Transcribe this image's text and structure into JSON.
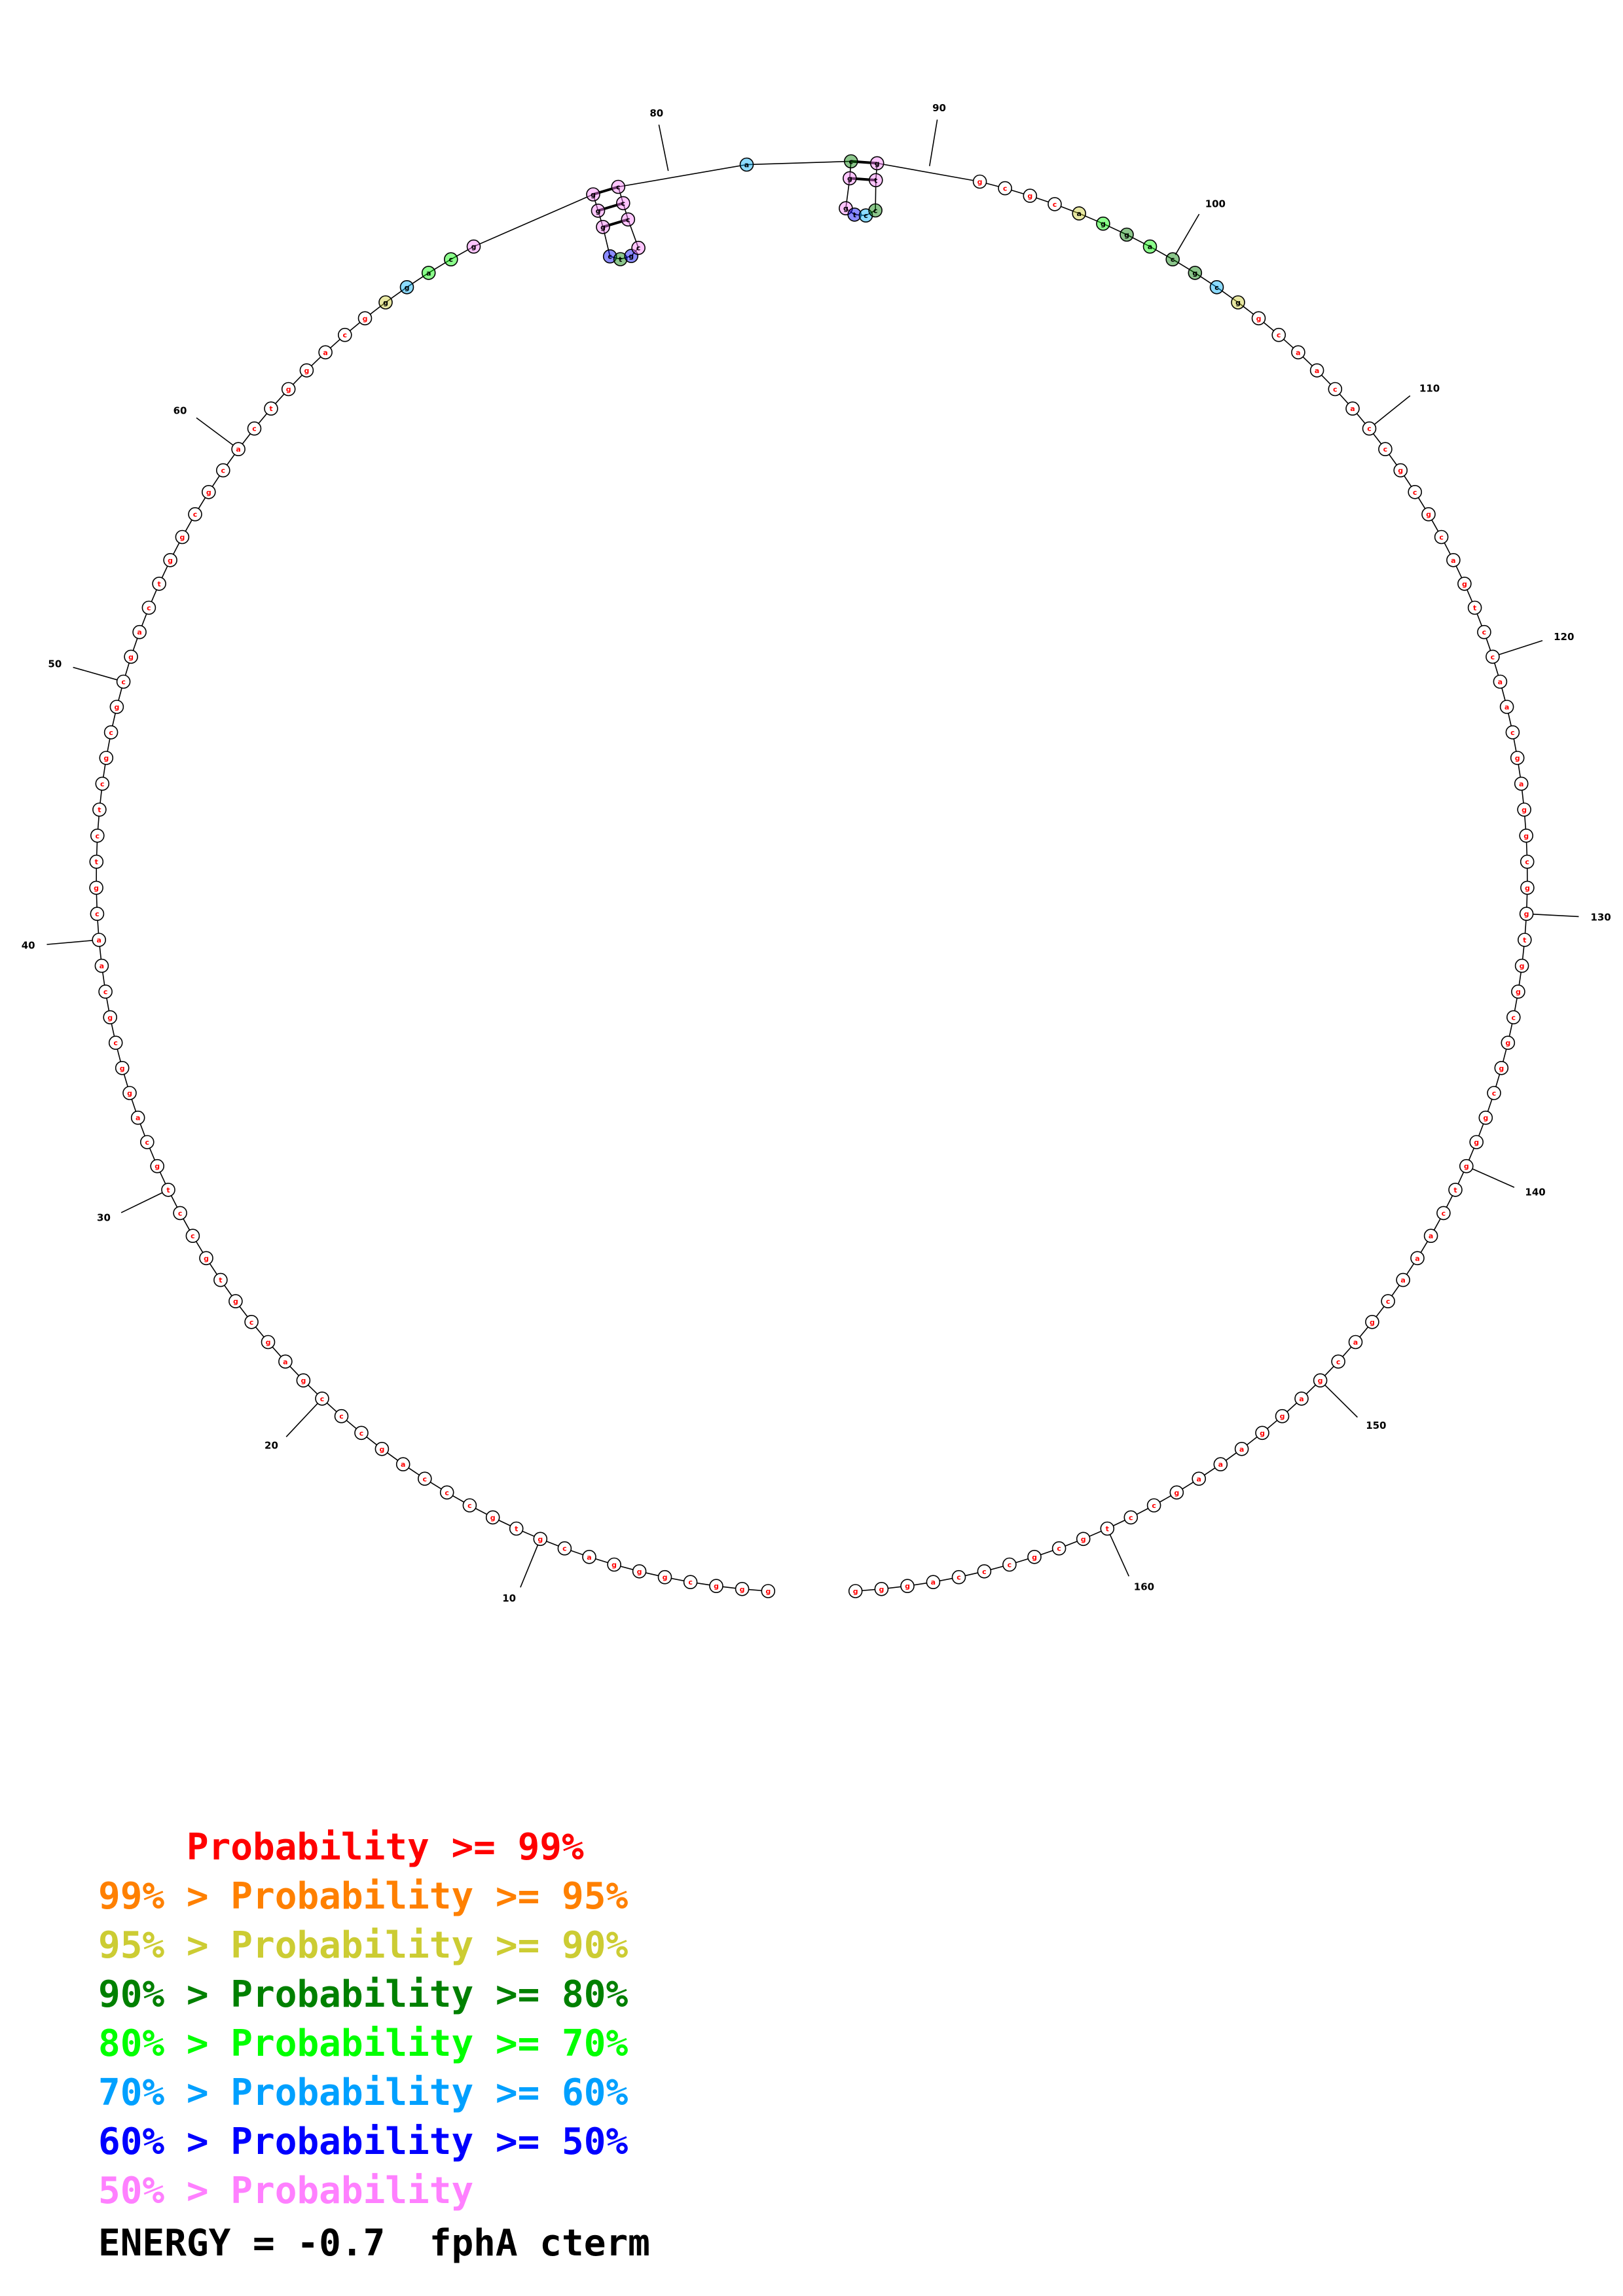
{
  "diagram": {
    "sequence": "gggcgggacgtgcccagcccgagcgtgcctgcaggcgcaacgtctcgcgcgactggcgcactggacgggacggggctgccccacggtcctggcgcaggacgcggcaacaccgcgcagtccaacgaggcggtggcggcgggtcaaacgacgaggaaagcctgcgcccagggcggctcttc",
    "length": 170,
    "hairpins": [
      {
        "stem": [
          [
            73,
            82
          ],
          [
            74,
            81
          ],
          [
            75,
            80
          ]
        ],
        "loop": [
          76,
          77,
          78,
          79
        ]
      },
      {
        "stem": [
          [
            84,
            91
          ],
          [
            85,
            90
          ]
        ],
        "loop": [
          86,
          87,
          88,
          89
        ]
      }
    ],
    "position_labels": [
      "10",
      "20",
      "30",
      "40",
      "50",
      "60",
      "80",
      "90",
      "100",
      "110",
      "120",
      "130",
      "140",
      "150",
      "160"
    ],
    "colored_bases": [
      {
        "index": 68,
        "color": "#cccc33"
      },
      {
        "index": 69,
        "color": "#00b0ff"
      },
      {
        "index": 70,
        "color": "#00ff00"
      },
      {
        "index": 71,
        "color": "#00ff00"
      },
      {
        "index": 72,
        "color": "#ff80ff"
      },
      {
        "index": 73,
        "color": "#ff80ff"
      },
      {
        "index": 74,
        "color": "#ff80ff"
      },
      {
        "index": 75,
        "color": "#ff80ff"
      },
      {
        "index": 76,
        "color": "#0000ff"
      },
      {
        "index": 77,
        "color": "#008000"
      },
      {
        "index": 78,
        "color": "#0000ff"
      },
      {
        "index": 79,
        "color": "#ff80ff"
      },
      {
        "index": 80,
        "color": "#ff80ff"
      },
      {
        "index": 81,
        "color": "#ff80ff"
      },
      {
        "index": 82,
        "color": "#ff80ff"
      },
      {
        "index": 83,
        "color": "#00b0ff"
      },
      {
        "index": 84,
        "color": "#008000"
      },
      {
        "index": 85,
        "color": "#ff80ff"
      },
      {
        "index": 86,
        "color": "#ff80ff"
      },
      {
        "index": 87,
        "color": "#0000ff"
      },
      {
        "index": 88,
        "color": "#00b0ff"
      },
      {
        "index": 89,
        "color": "#008000"
      },
      {
        "index": 90,
        "color": "#ff80ff"
      },
      {
        "index": 91,
        "color": "#ff80ff"
      },
      {
        "index": 96,
        "color": "#cccc33"
      },
      {
        "index": 97,
        "color": "#00ff00"
      },
      {
        "index": 98,
        "color": "#008000"
      },
      {
        "index": 99,
        "color": "#00ff00"
      },
      {
        "index": 100,
        "color": "#008000"
      },
      {
        "index": 101,
        "color": "#008000"
      },
      {
        "index": 102,
        "color": "#00b0ff"
      },
      {
        "index": 103,
        "color": "#cccc33"
      }
    ],
    "default_color": "#ff0000"
  },
  "legend": [
    {
      "prefix": "    ",
      "middle": "Probability",
      "suffix": " >= 99%",
      "color": "#ff0000"
    },
    {
      "prefix": "99% > ",
      "middle": "Probability",
      "suffix": " >= 95%",
      "color": "#ff8000"
    },
    {
      "prefix": "95% > ",
      "middle": "Probability",
      "suffix": " >= 90%",
      "color": "#cccc33"
    },
    {
      "prefix": "90% > ",
      "middle": "Probability",
      "suffix": " >= 80%",
      "color": "#008000"
    },
    {
      "prefix": "80% > ",
      "middle": "Probability",
      "suffix": " >= 70%",
      "color": "#00ff00"
    },
    {
      "prefix": "70% > ",
      "middle": "Probability",
      "suffix": " >= 60%",
      "color": "#00a0ff"
    },
    {
      "prefix": "60% > ",
      "middle": "Probability",
      "suffix": " >= 50%",
      "color": "#0000ff"
    },
    {
      "prefix": "50% > ",
      "middle": "Probability",
      "suffix": "",
      "color": "#ff80ff"
    }
  ],
  "energy_text": "ENERGY = -0.7  fphA cterm"
}
